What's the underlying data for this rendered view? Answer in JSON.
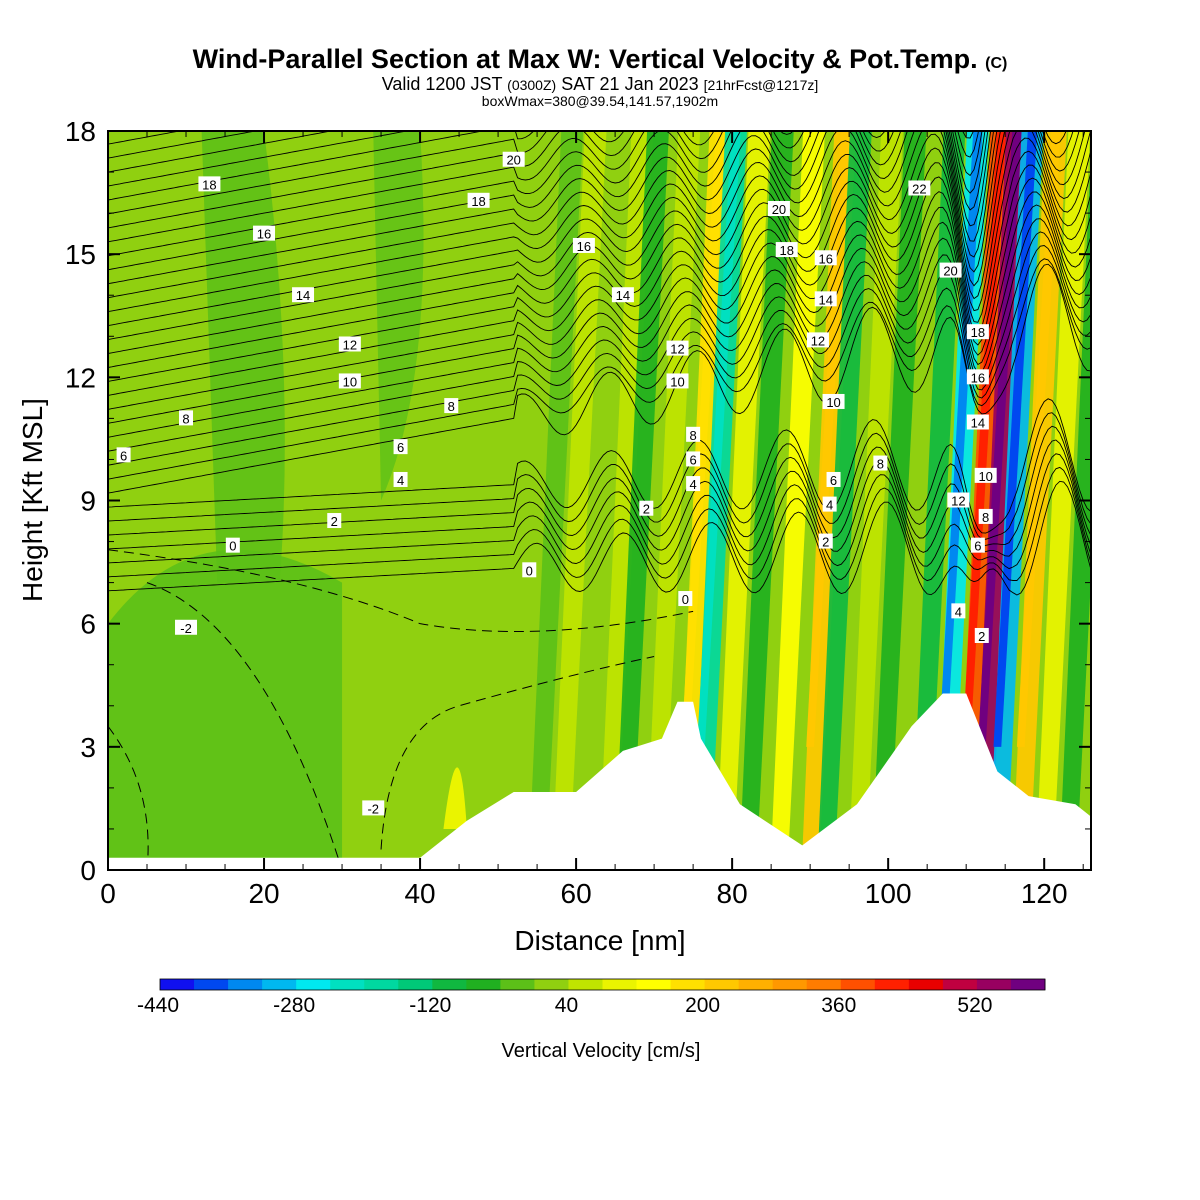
{
  "title": {
    "main": "Wind-Parallel Section at Max W: Vertical Velocity & Pot.Temp.",
    "main_suffix": "(C)",
    "valid_prefix": "Valid 1200 JST",
    "valid_utc": "(0300Z)",
    "valid_date": "SAT 21 Jan 2023",
    "forecast": "[21hrFcst@1217z]",
    "box_info": "boxWmax=380@39.54,141.57,1902m"
  },
  "chart_data": {
    "type": "heatmap",
    "xlabel": "Distance [nm]",
    "ylabel": "Height [Kft MSL]",
    "xlim": [
      0,
      126
    ],
    "ylim": [
      0,
      18
    ],
    "x_ticks": [
      "0",
      "20",
      "40",
      "60",
      "80",
      "100",
      "120"
    ],
    "y_ticks": [
      "0",
      "3",
      "6",
      "9",
      "12",
      "15",
      "18"
    ],
    "field": "Vertical Velocity [cm/s]",
    "contour_field": "potential temperature (C)",
    "colorbar": {
      "label": "Vertical Velocity [cm/s]",
      "tick_labels": [
        "-440",
        "-280",
        "-120",
        "40",
        "200",
        "360",
        "520"
      ],
      "colors": [
        "#1010f0",
        "#0048f0",
        "#0088f0",
        "#00b8f0",
        "#00e8f0",
        "#00e0c0",
        "#00d8a0",
        "#00c878",
        "#10b840",
        "#20b020",
        "#5cc018",
        "#90d010",
        "#c0e400",
        "#eaf400",
        "#ffff00",
        "#ffe000",
        "#ffc800",
        "#ffb000",
        "#ff9800",
        "#ff7c00",
        "#ff5000",
        "#ff2000",
        "#e80000",
        "#c00040",
        "#980060",
        "#700080"
      ]
    },
    "terrain": [
      {
        "x": 0,
        "h": 0.3
      },
      {
        "x": 40,
        "h": 0.3
      },
      {
        "x": 46,
        "h": 1.2
      },
      {
        "x": 52,
        "h": 1.9
      },
      {
        "x": 60,
        "h": 1.9
      },
      {
        "x": 66,
        "h": 2.9
      },
      {
        "x": 71,
        "h": 3.2
      },
      {
        "x": 73,
        "h": 4.1
      },
      {
        "x": 75,
        "h": 4.1
      },
      {
        "x": 76,
        "h": 3.2
      },
      {
        "x": 81,
        "h": 1.6
      },
      {
        "x": 89,
        "h": 0.6
      },
      {
        "x": 96,
        "h": 1.6
      },
      {
        "x": 103,
        "h": 3.5
      },
      {
        "x": 107,
        "h": 4.3
      },
      {
        "x": 110,
        "h": 4.3
      },
      {
        "x": 114,
        "h": 2.4
      },
      {
        "x": 118,
        "h": 1.8
      },
      {
        "x": 124,
        "h": 1.6
      },
      {
        "x": 126,
        "h": 1.3
      }
    ],
    "updraft_bands": [
      {
        "x": 55,
        "w": -20
      },
      {
        "x": 58,
        "w": 40
      },
      {
        "x": 64,
        "w": 60
      },
      {
        "x": 66,
        "w": -60
      },
      {
        "x": 70,
        "w": 60
      },
      {
        "x": 74,
        "w": 160
      },
      {
        "x": 76,
        "w": -200
      },
      {
        "x": 79,
        "w": 80
      },
      {
        "x": 82,
        "w": -80
      },
      {
        "x": 86,
        "w": 120
      },
      {
        "x": 90,
        "w": 200
      },
      {
        "x": 92,
        "w": -120
      },
      {
        "x": 96,
        "w": 40
      },
      {
        "x": 99,
        "w": -80
      },
      {
        "x": 104,
        "w": -120
      },
      {
        "x": 107,
        "w": -280
      },
      {
        "x": 110,
        "w": 380
      },
      {
        "x": 112,
        "w": 520
      },
      {
        "x": 114,
        "w": -320
      },
      {
        "x": 117,
        "w": 200
      },
      {
        "x": 120,
        "w": 80
      },
      {
        "x": 123,
        "w": -80
      }
    ],
    "contour_labels": [
      {
        "text": "20",
        "x": 52,
        "y": 17.3
      },
      {
        "text": "18",
        "x": 13,
        "y": 16.7
      },
      {
        "text": "18",
        "x": 47.5,
        "y": 16.3
      },
      {
        "text": "16",
        "x": 20,
        "y": 15.5
      },
      {
        "text": "14",
        "x": 25,
        "y": 14.0
      },
      {
        "text": "12",
        "x": 31,
        "y": 12.8
      },
      {
        "text": "10",
        "x": 31,
        "y": 11.9
      },
      {
        "text": "8",
        "x": 10,
        "y": 11.0
      },
      {
        "text": "8",
        "x": 44,
        "y": 11.3
      },
      {
        "text": "6",
        "x": 2,
        "y": 10.1
      },
      {
        "text": "6",
        "x": 37.5,
        "y": 10.3
      },
      {
        "text": "4",
        "x": 37.5,
        "y": 9.5
      },
      {
        "text": "2",
        "x": 29,
        "y": 8.5
      },
      {
        "text": "0",
        "x": 16,
        "y": 7.9
      },
      {
        "text": "-2",
        "x": 10,
        "y": 5.9
      },
      {
        "text": "-2",
        "x": 34,
        "y": 1.5
      },
      {
        "text": "0",
        "x": 54,
        "y": 7.3
      },
      {
        "text": "16",
        "x": 61,
        "y": 15.2
      },
      {
        "text": "14",
        "x": 66,
        "y": 14.0
      },
      {
        "text": "12",
        "x": 73,
        "y": 12.7
      },
      {
        "text": "10",
        "x": 73,
        "y": 11.9
      },
      {
        "text": "8",
        "x": 75,
        "y": 10.6
      },
      {
        "text": "6",
        "x": 75,
        "y": 10.0
      },
      {
        "text": "4",
        "x": 75,
        "y": 9.4
      },
      {
        "text": "2",
        "x": 69,
        "y": 8.8
      },
      {
        "text": "0",
        "x": 74,
        "y": 6.6
      },
      {
        "text": "20",
        "x": 86,
        "y": 16.1
      },
      {
        "text": "18",
        "x": 87,
        "y": 15.1
      },
      {
        "text": "16",
        "x": 92,
        "y": 14.9
      },
      {
        "text": "14",
        "x": 92,
        "y": 13.9
      },
      {
        "text": "12",
        "x": 91,
        "y": 12.9
      },
      {
        "text": "10",
        "x": 93,
        "y": 11.4
      },
      {
        "text": "8",
        "x": 99,
        "y": 9.9
      },
      {
        "text": "6",
        "x": 93,
        "y": 9.5
      },
      {
        "text": "4",
        "x": 92.5,
        "y": 8.9
      },
      {
        "text": "2",
        "x": 92,
        "y": 8.0
      },
      {
        "text": "22",
        "x": 104,
        "y": 16.6
      },
      {
        "text": "20",
        "x": 108,
        "y": 14.6
      },
      {
        "text": "18",
        "x": 111.5,
        "y": 13.1
      },
      {
        "text": "16",
        "x": 111.5,
        "y": 12.0
      },
      {
        "text": "14",
        "x": 111.5,
        "y": 10.9
      },
      {
        "text": "12",
        "x": 109,
        "y": 9.0
      },
      {
        "text": "10",
        "x": 112.5,
        "y": 9.6
      },
      {
        "text": "8",
        "x": 112.5,
        "y": 8.6
      },
      {
        "text": "6",
        "x": 111.5,
        "y": 7.9
      },
      {
        "text": "4",
        "x": 109,
        "y": 6.3
      },
      {
        "text": "2",
        "x": 112,
        "y": 5.7
      }
    ]
  }
}
